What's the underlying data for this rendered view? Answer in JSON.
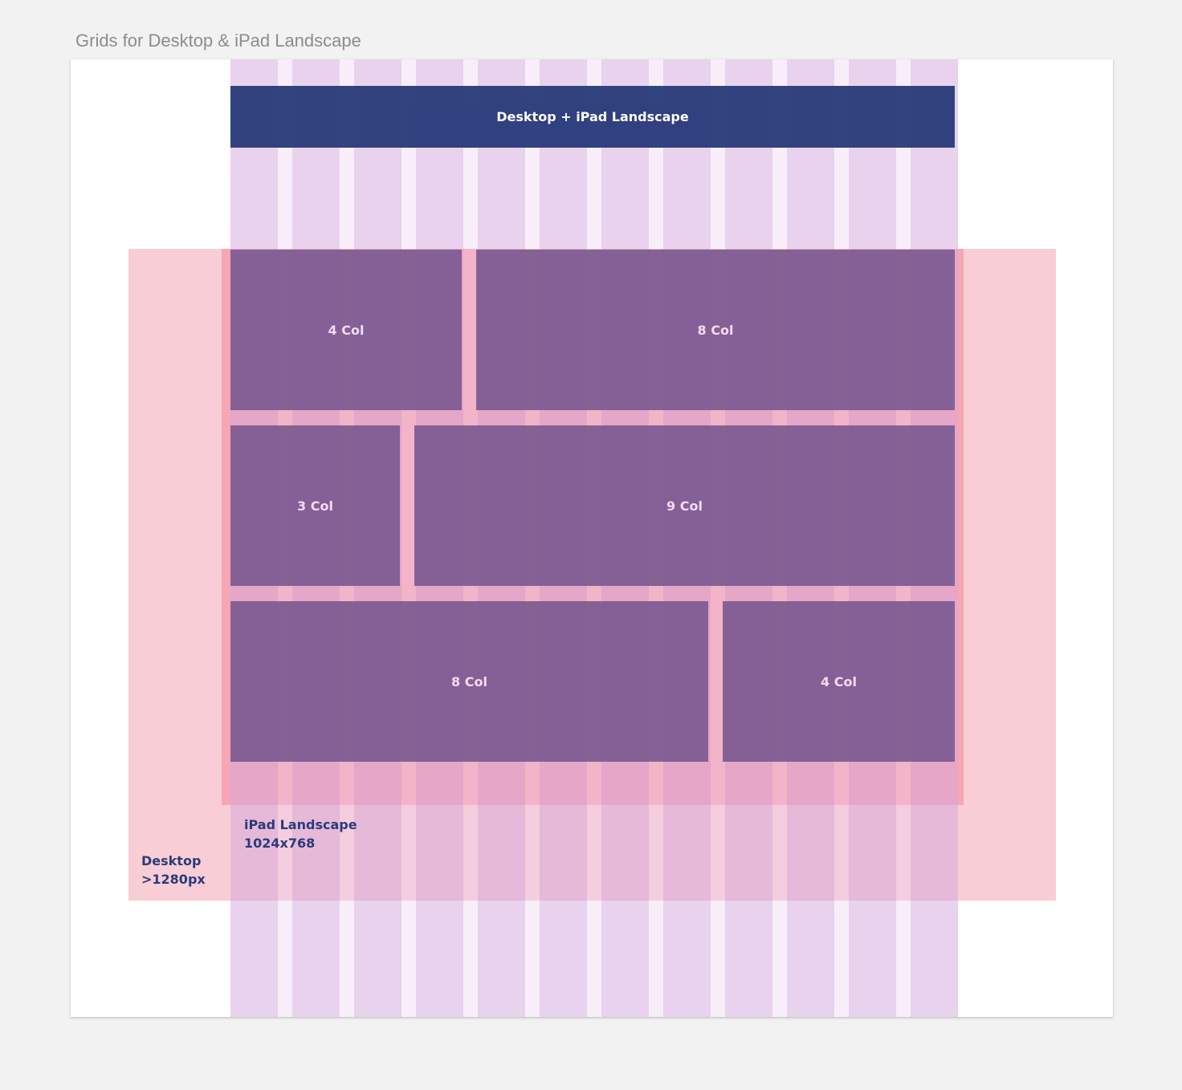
{
  "page_title": "Grids for Desktop & iPad Landscape",
  "header_label": "Desktop + iPad Landscape",
  "grid": {
    "columns": 12
  },
  "rows": [
    {
      "blocks": [
        {
          "label": "4 Col",
          "span": 4
        },
        {
          "label": "8 Col",
          "span": 8
        }
      ]
    },
    {
      "blocks": [
        {
          "label": "3 Col",
          "span": 3
        },
        {
          "label": "9 Col",
          "span": 9
        }
      ]
    },
    {
      "blocks": [
        {
          "label": "8 Col",
          "span": 8
        },
        {
          "label": "4 Col",
          "span": 4
        }
      ]
    }
  ],
  "ipad": {
    "name": "iPad Landscape",
    "size": "1024x768"
  },
  "desktop": {
    "name": "Desktop",
    "size": ">1280px"
  },
  "colors": {
    "header": "#2a3b7a",
    "block": "#7d5a91",
    "column": "#d3a5db",
    "desktop_zone": "#f9cdd5",
    "ipad_zone": "#f7a7b4",
    "label": "#2a3b7a"
  }
}
